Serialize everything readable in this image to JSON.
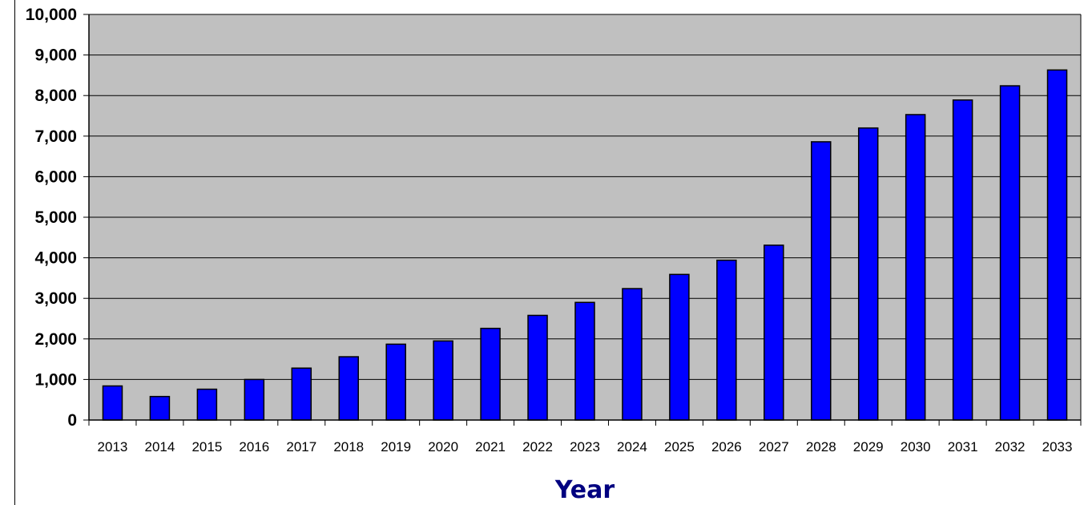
{
  "chart_data": {
    "type": "bar",
    "title": "",
    "xlabel": "Year",
    "ylabel": "",
    "ylim": [
      0,
      10000
    ],
    "yticks": [
      0,
      1000,
      2000,
      3000,
      4000,
      5000,
      6000,
      7000,
      8000,
      9000,
      10000
    ],
    "ytick_labels": [
      "0",
      "1,000",
      "2,000",
      "3,000",
      "4,000",
      "5,000",
      "6,000",
      "7,000",
      "8,000",
      "9,000",
      "10,000"
    ],
    "grid": true,
    "legend": false,
    "categories": [
      "2013",
      "2014",
      "2015",
      "2016",
      "2017",
      "2018",
      "2019",
      "2020",
      "2021",
      "2022",
      "2023",
      "2024",
      "2025",
      "2026",
      "2027",
      "2028",
      "2029",
      "2030",
      "2031",
      "2032",
      "2033"
    ],
    "values": [
      840,
      580,
      760,
      1000,
      1280,
      1560,
      1870,
      1950,
      2260,
      2580,
      2900,
      3240,
      3590,
      3940,
      4310,
      6860,
      7200,
      7530,
      7890,
      8240,
      8630
    ],
    "colors": {
      "bar": "#0000ff",
      "bar_outline": "#000000",
      "plot_background": "#c0c0c0",
      "gridline": "#000000",
      "xlabel": "#000080"
    }
  }
}
